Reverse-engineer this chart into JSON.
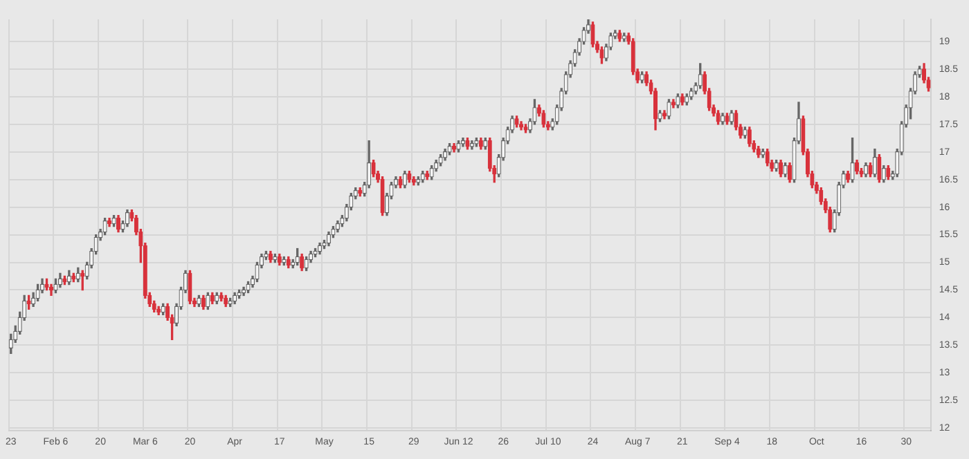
{
  "chart_data": {
    "type": "candlestick",
    "categories": [
      "23",
      null,
      null,
      null,
      null,
      null,
      null,
      null,
      null,
      null,
      "Feb 6",
      null,
      null,
      null,
      null,
      null,
      null,
      null,
      null,
      null,
      "20",
      null,
      null,
      null,
      null,
      null,
      null,
      null,
      null,
      null,
      "Mar 6",
      null,
      null,
      null,
      null,
      null,
      null,
      null,
      null,
      null,
      "20",
      null,
      null,
      null,
      null,
      null,
      null,
      null,
      null,
      null,
      "Apr",
      null,
      null,
      null,
      null,
      null,
      null,
      null,
      null,
      null,
      "17",
      null,
      null,
      null,
      null,
      null,
      null,
      null,
      null,
      null,
      "May",
      null,
      null,
      null,
      null,
      null,
      null,
      null,
      null,
      null,
      "15",
      null,
      null,
      null,
      null,
      null,
      null,
      null,
      null,
      null,
      "29",
      null,
      null,
      null,
      null,
      null,
      null,
      null,
      null,
      null,
      "Jun 12",
      null,
      null,
      null,
      null,
      null,
      null,
      null,
      null,
      null,
      "26",
      null,
      null,
      null,
      null,
      null,
      null,
      null,
      null,
      null,
      "Jul 10",
      null,
      null,
      null,
      null,
      null,
      null,
      null,
      null,
      null,
      "24",
      null,
      null,
      null,
      null,
      null,
      null,
      null,
      null,
      null,
      "Aug 7",
      null,
      null,
      null,
      null,
      null,
      null,
      null,
      null,
      null,
      "21",
      null,
      null,
      null,
      null,
      null,
      null,
      null,
      null,
      null,
      "Sep 4",
      null,
      null,
      null,
      null,
      null,
      null,
      null,
      null,
      null,
      "18",
      null,
      null,
      null,
      null,
      null,
      null,
      null,
      null,
      null,
      "Oct",
      null,
      null,
      null,
      null,
      null,
      null,
      null,
      null,
      null,
      "16",
      null,
      null,
      null,
      null,
      null,
      null,
      null,
      null,
      null,
      "30",
      null,
      null,
      null,
      null,
      null
    ],
    "ohlc": [
      [
        13.45,
        13.7,
        13.35,
        13.6
      ],
      [
        13.6,
        13.85,
        13.55,
        13.75
      ],
      [
        13.75,
        14.1,
        13.7,
        14.0
      ],
      [
        14.0,
        14.4,
        13.95,
        14.3
      ],
      [
        14.3,
        14.4,
        14.15,
        14.25
      ],
      [
        14.25,
        14.45,
        14.2,
        14.35
      ],
      [
        14.35,
        14.6,
        14.3,
        14.5
      ],
      [
        14.5,
        14.7,
        14.45,
        14.6
      ],
      [
        14.6,
        14.7,
        14.5,
        14.55
      ],
      [
        14.55,
        14.6,
        14.4,
        14.5
      ],
      [
        14.5,
        14.7,
        14.45,
        14.6
      ],
      [
        14.6,
        14.8,
        14.55,
        14.7
      ],
      [
        14.7,
        14.75,
        14.6,
        14.65
      ],
      [
        14.65,
        14.85,
        14.6,
        14.75
      ],
      [
        14.75,
        14.8,
        14.65,
        14.7
      ],
      [
        14.7,
        14.9,
        14.65,
        14.8
      ],
      [
        14.8,
        14.85,
        14.5,
        14.75
      ],
      [
        14.75,
        15.0,
        14.7,
        14.95
      ],
      [
        14.95,
        15.25,
        14.9,
        15.2
      ],
      [
        15.2,
        15.5,
        15.15,
        15.45
      ],
      [
        15.45,
        15.6,
        15.4,
        15.55
      ],
      [
        15.55,
        15.8,
        15.5,
        15.75
      ],
      [
        15.75,
        15.8,
        15.65,
        15.7
      ],
      [
        15.7,
        15.85,
        15.65,
        15.8
      ],
      [
        15.8,
        15.85,
        15.55,
        15.6
      ],
      [
        15.6,
        15.75,
        15.55,
        15.7
      ],
      [
        15.7,
        15.95,
        15.65,
        15.9
      ],
      [
        15.9,
        15.95,
        15.75,
        15.8
      ],
      [
        15.8,
        15.85,
        15.5,
        15.55
      ],
      [
        15.55,
        15.6,
        15.0,
        15.3
      ],
      [
        15.3,
        15.35,
        14.35,
        14.4
      ],
      [
        14.4,
        14.45,
        14.2,
        14.25
      ],
      [
        14.25,
        14.3,
        14.1,
        14.15
      ],
      [
        14.15,
        14.2,
        14.05,
        14.1
      ],
      [
        14.1,
        14.25,
        14.05,
        14.2
      ],
      [
        14.2,
        14.25,
        13.95,
        14.0
      ],
      [
        14.0,
        14.05,
        13.6,
        13.9
      ],
      [
        13.9,
        14.25,
        13.85,
        14.2
      ],
      [
        14.2,
        14.55,
        14.15,
        14.5
      ],
      [
        14.5,
        14.85,
        14.45,
        14.8
      ],
      [
        14.8,
        14.85,
        14.25,
        14.3
      ],
      [
        14.3,
        14.35,
        14.2,
        14.25
      ],
      [
        14.25,
        14.4,
        14.2,
        14.35
      ],
      [
        14.35,
        14.4,
        14.15,
        14.2
      ],
      [
        14.2,
        14.45,
        14.15,
        14.4
      ],
      [
        14.4,
        14.45,
        14.25,
        14.3
      ],
      [
        14.3,
        14.45,
        14.25,
        14.4
      ],
      [
        14.4,
        14.45,
        14.3,
        14.35
      ],
      [
        14.35,
        14.4,
        14.2,
        14.25
      ],
      [
        14.25,
        14.35,
        14.2,
        14.3
      ],
      [
        14.3,
        14.45,
        14.25,
        14.4
      ],
      [
        14.4,
        14.5,
        14.35,
        14.45
      ],
      [
        14.45,
        14.55,
        14.4,
        14.5
      ],
      [
        14.5,
        14.65,
        14.45,
        14.6
      ],
      [
        14.6,
        14.75,
        14.55,
        14.7
      ],
      [
        14.7,
        15.0,
        14.65,
        14.95
      ],
      [
        14.95,
        15.15,
        14.9,
        15.1
      ],
      [
        15.1,
        15.2,
        15.05,
        15.15
      ],
      [
        15.15,
        15.2,
        15.0,
        15.05
      ],
      [
        15.05,
        15.15,
        15.0,
        15.1
      ],
      [
        15.1,
        15.15,
        14.95,
        15.0
      ],
      [
        15.0,
        15.1,
        14.95,
        15.05
      ],
      [
        15.05,
        15.1,
        14.9,
        14.95
      ],
      [
        14.95,
        15.05,
        14.9,
        15.0
      ],
      [
        15.0,
        15.25,
        14.95,
        15.1
      ],
      [
        15.1,
        15.15,
        14.85,
        14.9
      ],
      [
        14.9,
        15.1,
        14.85,
        15.05
      ],
      [
        15.05,
        15.2,
        15.0,
        15.15
      ],
      [
        15.15,
        15.25,
        15.1,
        15.2
      ],
      [
        15.2,
        15.35,
        15.15,
        15.3
      ],
      [
        15.3,
        15.4,
        15.25,
        15.35
      ],
      [
        15.35,
        15.55,
        15.3,
        15.5
      ],
      [
        15.5,
        15.65,
        15.45,
        15.6
      ],
      [
        15.6,
        15.75,
        15.55,
        15.7
      ],
      [
        15.7,
        15.85,
        15.65,
        15.8
      ],
      [
        15.8,
        16.05,
        15.75,
        16.0
      ],
      [
        16.0,
        16.25,
        15.95,
        16.2
      ],
      [
        16.2,
        16.35,
        16.15,
        16.3
      ],
      [
        16.3,
        16.35,
        16.2,
        16.25
      ],
      [
        16.25,
        16.45,
        16.2,
        16.4
      ],
      [
        16.4,
        17.2,
        16.35,
        16.8
      ],
      [
        16.8,
        16.85,
        16.55,
        16.6
      ],
      [
        16.6,
        16.65,
        16.45,
        16.5
      ],
      [
        16.5,
        16.55,
        15.85,
        15.9
      ],
      [
        15.9,
        16.25,
        15.85,
        16.2
      ],
      [
        16.2,
        16.45,
        16.15,
        16.4
      ],
      [
        16.4,
        16.55,
        16.35,
        16.5
      ],
      [
        16.5,
        16.55,
        16.35,
        16.4
      ],
      [
        16.4,
        16.65,
        16.35,
        16.6
      ],
      [
        16.6,
        16.65,
        16.45,
        16.5
      ],
      [
        16.5,
        16.55,
        16.4,
        16.45
      ],
      [
        16.45,
        16.55,
        16.4,
        16.5
      ],
      [
        16.5,
        16.65,
        16.45,
        16.6
      ],
      [
        16.6,
        16.65,
        16.5,
        16.55
      ],
      [
        16.55,
        16.75,
        16.5,
        16.7
      ],
      [
        16.7,
        16.85,
        16.65,
        16.8
      ],
      [
        16.8,
        16.95,
        16.75,
        16.9
      ],
      [
        16.9,
        17.05,
        16.85,
        17.0
      ],
      [
        17.0,
        17.15,
        16.95,
        17.1
      ],
      [
        17.1,
        17.15,
        17.0,
        17.05
      ],
      [
        17.05,
        17.2,
        17.0,
        17.15
      ],
      [
        17.15,
        17.25,
        17.1,
        17.2
      ],
      [
        17.2,
        17.25,
        17.05,
        17.1
      ],
      [
        17.1,
        17.2,
        17.05,
        17.15
      ],
      [
        17.15,
        17.25,
        17.1,
        17.2
      ],
      [
        17.2,
        17.25,
        17.05,
        17.1
      ],
      [
        17.1,
        17.25,
        17.05,
        17.2
      ],
      [
        17.2,
        17.25,
        16.65,
        16.7
      ],
      [
        16.7,
        16.75,
        16.45,
        16.6
      ],
      [
        16.6,
        16.95,
        16.55,
        16.9
      ],
      [
        16.9,
        17.25,
        16.85,
        17.2
      ],
      [
        17.2,
        17.45,
        17.15,
        17.4
      ],
      [
        17.4,
        17.65,
        17.35,
        17.6
      ],
      [
        17.6,
        17.65,
        17.45,
        17.5
      ],
      [
        17.5,
        17.55,
        17.4,
        17.45
      ],
      [
        17.45,
        17.5,
        17.35,
        17.4
      ],
      [
        17.4,
        17.6,
        17.35,
        17.55
      ],
      [
        17.55,
        17.95,
        17.5,
        17.8
      ],
      [
        17.8,
        17.85,
        17.65,
        17.7
      ],
      [
        17.7,
        17.75,
        17.45,
        17.5
      ],
      [
        17.5,
        17.55,
        17.4,
        17.45
      ],
      [
        17.45,
        17.6,
        17.4,
        17.55
      ],
      [
        17.55,
        17.85,
        17.5,
        17.8
      ],
      [
        17.8,
        18.15,
        17.75,
        18.1
      ],
      [
        18.1,
        18.45,
        18.05,
        18.4
      ],
      [
        18.4,
        18.65,
        18.35,
        18.6
      ],
      [
        18.6,
        18.85,
        18.55,
        18.8
      ],
      [
        18.8,
        19.05,
        18.75,
        19.0
      ],
      [
        19.0,
        19.25,
        18.95,
        19.2
      ],
      [
        19.2,
        19.4,
        19.15,
        19.3
      ],
      [
        19.3,
        19.35,
        18.9,
        18.95
      ],
      [
        18.95,
        19.0,
        18.8,
        18.85
      ],
      [
        18.85,
        18.9,
        18.6,
        18.7
      ],
      [
        18.7,
        18.95,
        18.65,
        18.9
      ],
      [
        18.9,
        19.15,
        18.85,
        19.1
      ],
      [
        19.1,
        19.2,
        19.05,
        19.15
      ],
      [
        19.15,
        19.2,
        19.0,
        19.05
      ],
      [
        19.05,
        19.15,
        19.0,
        19.1
      ],
      [
        19.1,
        19.15,
        18.95,
        19.0
      ],
      [
        19.0,
        19.05,
        18.4,
        18.45
      ],
      [
        18.45,
        18.5,
        18.25,
        18.3
      ],
      [
        18.3,
        18.45,
        18.25,
        18.4
      ],
      [
        18.4,
        18.45,
        18.2,
        18.25
      ],
      [
        18.25,
        18.3,
        18.05,
        18.1
      ],
      [
        18.1,
        18.15,
        17.4,
        17.6
      ],
      [
        17.6,
        17.75,
        17.55,
        17.7
      ],
      [
        17.7,
        17.75,
        17.6,
        17.65
      ],
      [
        17.65,
        17.95,
        17.6,
        17.9
      ],
      [
        17.9,
        17.95,
        17.8,
        17.85
      ],
      [
        17.85,
        18.05,
        17.8,
        18.0
      ],
      [
        18.0,
        18.05,
        17.85,
        17.9
      ],
      [
        17.9,
        18.05,
        17.85,
        18.0
      ],
      [
        18.0,
        18.15,
        17.95,
        18.1
      ],
      [
        18.1,
        18.25,
        18.05,
        18.2
      ],
      [
        18.2,
        18.6,
        18.15,
        18.4
      ],
      [
        18.4,
        18.45,
        18.05,
        18.1
      ],
      [
        18.1,
        18.15,
        17.75,
        17.8
      ],
      [
        17.8,
        17.85,
        17.65,
        17.7
      ],
      [
        17.7,
        17.75,
        17.5,
        17.55
      ],
      [
        17.55,
        17.7,
        17.5,
        17.65
      ],
      [
        17.65,
        17.7,
        17.5,
        17.55
      ],
      [
        17.55,
        17.75,
        17.5,
        17.7
      ],
      [
        17.7,
        17.75,
        17.4,
        17.45
      ],
      [
        17.45,
        17.5,
        17.25,
        17.3
      ],
      [
        17.3,
        17.45,
        17.25,
        17.4
      ],
      [
        17.4,
        17.45,
        17.1,
        17.15
      ],
      [
        17.15,
        17.2,
        17.0,
        17.05
      ],
      [
        17.05,
        17.1,
        16.9,
        16.95
      ],
      [
        16.95,
        17.05,
        16.9,
        17.0
      ],
      [
        17.0,
        17.05,
        16.75,
        16.8
      ],
      [
        16.8,
        16.85,
        16.65,
        16.7
      ],
      [
        16.7,
        16.85,
        16.65,
        16.8
      ],
      [
        16.8,
        16.85,
        16.55,
        16.6
      ],
      [
        16.6,
        16.8,
        16.55,
        16.75
      ],
      [
        16.75,
        16.8,
        16.45,
        16.5
      ],
      [
        16.5,
        17.25,
        16.45,
        17.2
      ],
      [
        17.2,
        17.9,
        17.15,
        17.6
      ],
      [
        17.6,
        17.65,
        16.95,
        17.0
      ],
      [
        17.0,
        17.05,
        16.55,
        16.6
      ],
      [
        16.6,
        16.65,
        16.35,
        16.4
      ],
      [
        16.4,
        16.45,
        16.25,
        16.3
      ],
      [
        16.3,
        16.35,
        16.05,
        16.1
      ],
      [
        16.1,
        16.15,
        15.9,
        15.95
      ],
      [
        15.95,
        16.0,
        15.55,
        15.6
      ],
      [
        15.6,
        15.95,
        15.55,
        15.9
      ],
      [
        15.9,
        16.45,
        15.85,
        16.4
      ],
      [
        16.4,
        16.65,
        16.35,
        16.6
      ],
      [
        16.6,
        16.65,
        16.45,
        16.5
      ],
      [
        16.5,
        17.25,
        16.45,
        16.8
      ],
      [
        16.8,
        16.85,
        16.6,
        16.65
      ],
      [
        16.65,
        16.7,
        16.55,
        16.6
      ],
      [
        16.6,
        16.8,
        16.55,
        16.75
      ],
      [
        16.75,
        16.8,
        16.55,
        16.6
      ],
      [
        16.6,
        17.05,
        16.55,
        16.9
      ],
      [
        16.9,
        16.95,
        16.45,
        16.5
      ],
      [
        16.5,
        16.75,
        16.45,
        16.7
      ],
      [
        16.7,
        16.75,
        16.5,
        16.55
      ],
      [
        16.55,
        16.65,
        16.5,
        16.6
      ],
      [
        16.6,
        17.05,
        16.55,
        17.0
      ],
      [
        17.0,
        17.55,
        16.95,
        17.5
      ],
      [
        17.5,
        17.85,
        17.45,
        17.8
      ],
      [
        17.8,
        18.15,
        17.6,
        18.1
      ],
      [
        18.1,
        18.45,
        18.05,
        18.4
      ],
      [
        18.4,
        18.55,
        18.35,
        18.5
      ],
      [
        18.5,
        18.6,
        18.25,
        18.3
      ],
      [
        18.3,
        18.35,
        18.1,
        18.16
      ]
    ],
    "ylim": [
      11.95,
      19.4
    ],
    "yticks": [
      12,
      12.5,
      13,
      13.5,
      14,
      14.5,
      15,
      15.5,
      16,
      16.5,
      17,
      17.5,
      18,
      18.5,
      19
    ],
    "grid": true
  }
}
